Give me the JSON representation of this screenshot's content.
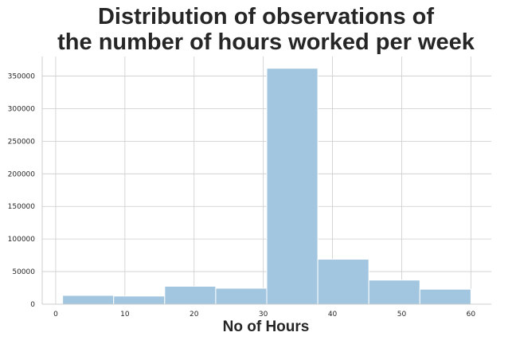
{
  "chart_data": {
    "type": "bar",
    "title_lines": [
      "Distribution of observations of",
      "the number of hours worked per week"
    ],
    "xlabel": "No of Hours",
    "ylabel": "",
    "bin_edges": [
      1.0,
      8.375,
      15.75,
      23.125,
      30.5,
      37.875,
      45.25,
      52.625,
      60.0
    ],
    "values": [
      13500,
      12500,
      27500,
      24500,
      362000,
      69000,
      37000,
      23000
    ],
    "xlim": [
      -1.95,
      62.95
    ],
    "ylim": [
      0,
      380000
    ],
    "xticks": [
      0,
      10,
      20,
      30,
      40,
      50,
      60
    ],
    "yticks": [
      0,
      50000,
      100000,
      150000,
      200000,
      250000,
      300000,
      350000
    ],
    "grid": true,
    "bar_color": "#a2c6df"
  }
}
